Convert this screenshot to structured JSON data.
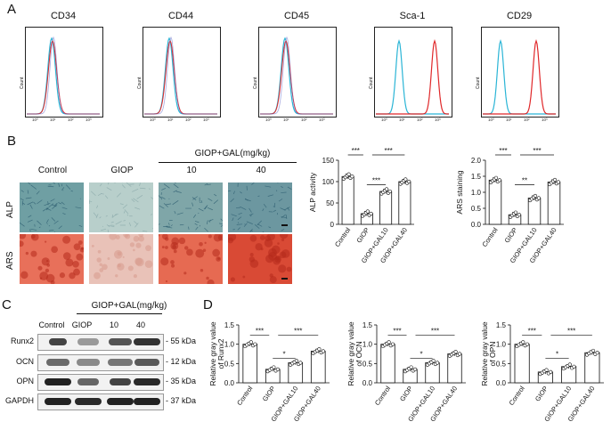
{
  "panels": {
    "a": "A",
    "b": "B",
    "c": "C",
    "d": "D"
  },
  "flow": {
    "markers": [
      "CD34",
      "CD44",
      "CD45",
      "Sca-1",
      "CD29"
    ],
    "ylabel": "Count",
    "xticks": [
      "10⁰",
      "10¹",
      "10²",
      "10³"
    ],
    "colors": {
      "isotype": "#2bb5d6",
      "sample": "#e0282a"
    }
  },
  "histology": {
    "group_header": "GIOP+GAL(mg/kg)",
    "columns": [
      "Control",
      "GIOP",
      "10",
      "40"
    ],
    "rows": [
      "ALP",
      "ARS"
    ]
  },
  "wb": {
    "group_header": "GIOP+GAL(mg/kg)",
    "columns": [
      "Control",
      "GIOP",
      "10",
      "40"
    ],
    "proteins": [
      "Runx2",
      "OCN",
      "OPN",
      "GAPDH"
    ],
    "sizes": [
      "- 55 kDa",
      "- 12 kDa",
      "- 35 kDa",
      "- 37 kDa"
    ]
  },
  "chart_data": [
    {
      "type": "bar",
      "ylabel": "ALP activity",
      "ylim": [
        0,
        150
      ],
      "yticks": [
        0,
        50,
        100,
        150
      ],
      "categories": [
        "Control",
        "GIOP",
        "GIOP+GAL10",
        "GIOP+GAL40"
      ],
      "values": [
        112,
        25,
        77,
        100
      ],
      "sig": [
        "***",
        "***",
        "***"
      ]
    },
    {
      "type": "bar",
      "ylabel": "ARS staining",
      "ylim": [
        0,
        2.0
      ],
      "yticks": [
        0.0,
        0.5,
        1.0,
        1.5,
        2.0
      ],
      "categories": [
        "Control",
        "GIOP",
        "GIOP+GAL10",
        "GIOP+GAL40"
      ],
      "values": [
        1.38,
        0.3,
        0.82,
        1.32
      ],
      "sig": [
        "***",
        "**",
        "***"
      ]
    },
    {
      "type": "bar",
      "ylabel": "Relative gray value of Runx2",
      "ylim": [
        0,
        1.5
      ],
      "yticks": [
        0.0,
        0.5,
        1.0,
        1.5
      ],
      "categories": [
        "Control",
        "GIOP",
        "GIOP+GAL10",
        "GIOP+GAL40"
      ],
      "values": [
        1.0,
        0.35,
        0.52,
        0.82
      ],
      "sig": [
        "***",
        "*",
        "***"
      ]
    },
    {
      "type": "bar",
      "ylabel": "Relative gray value of OCN",
      "ylim": [
        0,
        1.5
      ],
      "yticks": [
        0.0,
        0.5,
        1.0,
        1.5
      ],
      "categories": [
        "Control",
        "GIOP",
        "GIOP+GAL10",
        "GIOP+GAL40"
      ],
      "values": [
        1.0,
        0.35,
        0.52,
        0.75
      ],
      "sig": [
        "***",
        "*",
        "***"
      ]
    },
    {
      "type": "bar",
      "ylabel": "Relative gray value of OPN",
      "ylim": [
        0,
        1.5
      ],
      "yticks": [
        0.0,
        0.5,
        1.0,
        1.5
      ],
      "categories": [
        "Control",
        "GIOP",
        "GIOP+GAL10",
        "GIOP+GAL40"
      ],
      "values": [
        1.0,
        0.28,
        0.42,
        0.78
      ],
      "sig": [
        "***",
        "*",
        "***"
      ]
    }
  ]
}
